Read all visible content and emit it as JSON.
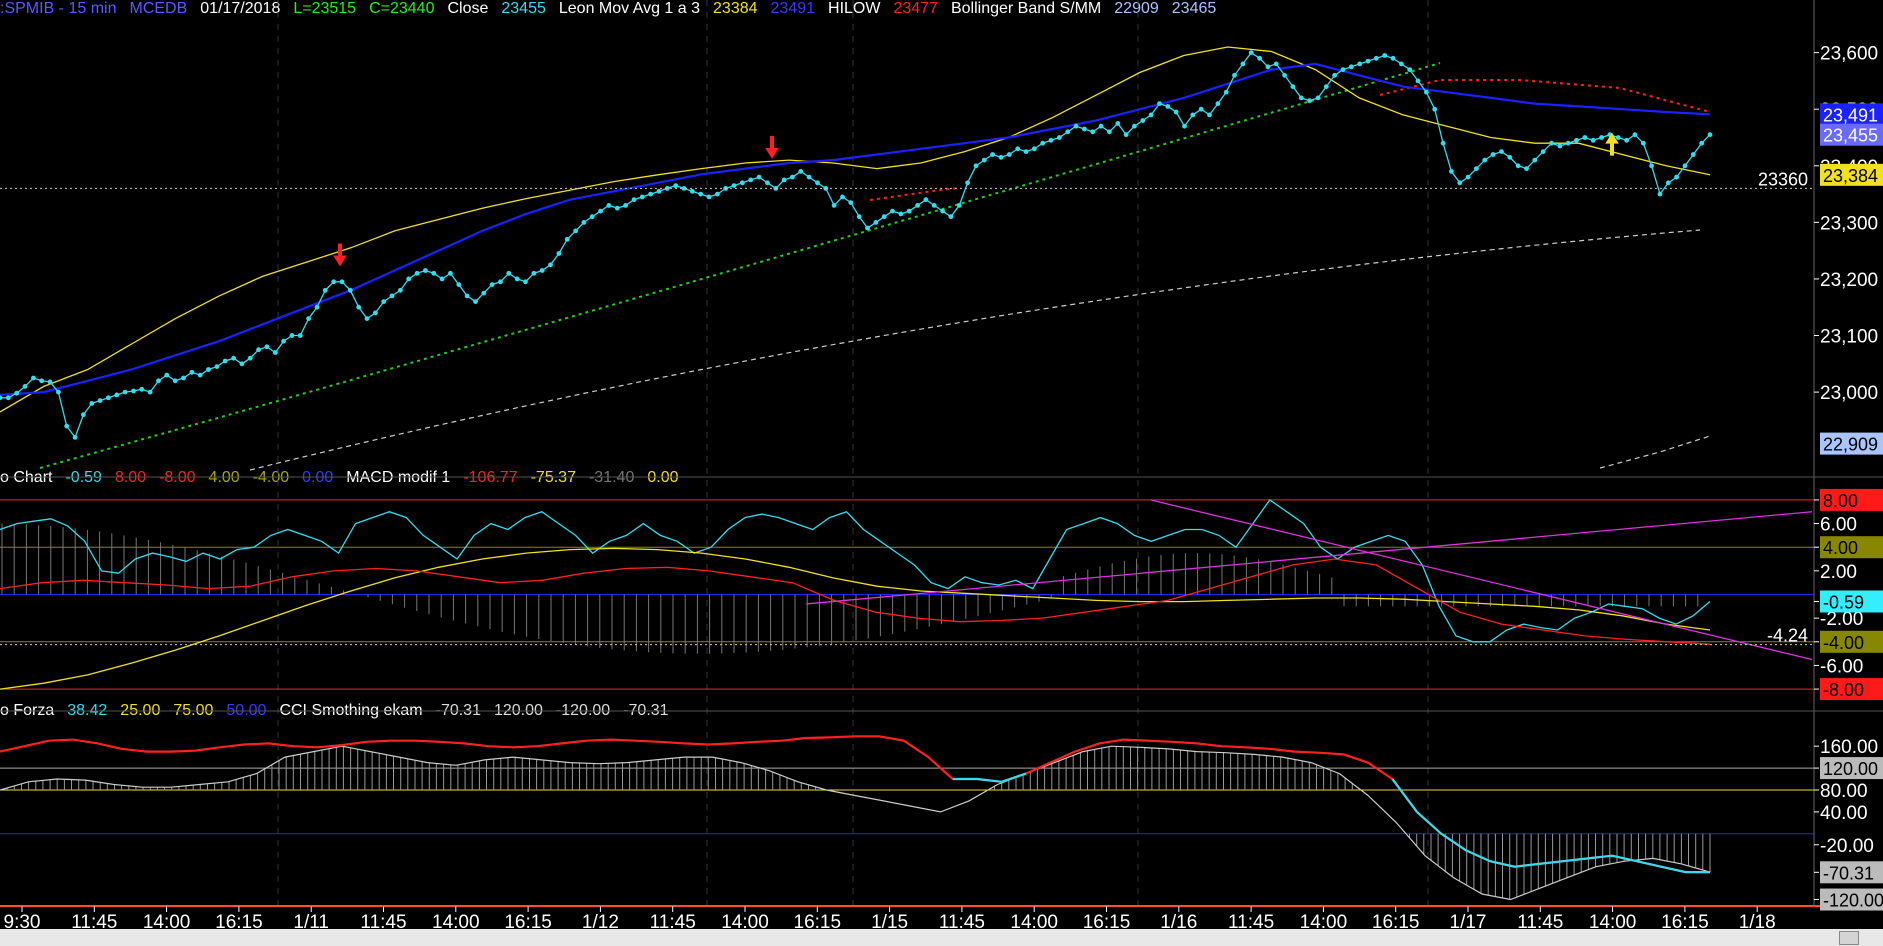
{
  "colors": {
    "cyan": "#33ddee",
    "yellow": "#f0e020",
    "blue": "#1a22ff",
    "red": "#ff2020",
    "green": "#22cc22",
    "grey": "#cccccc",
    "magenta": "#dd33dd",
    "olive": "#888800"
  },
  "header_main": [
    {
      "text": ":SPMIB - 15 min",
      "color": "#5a5aff"
    },
    {
      "text": "MCEDB",
      "color": "#5a5aff"
    },
    {
      "text": "01/17/2018",
      "color": "#ffffff"
    },
    {
      "text": "L=23515",
      "color": "#22ee22"
    },
    {
      "text": "C=23440",
      "color": "#22ee22"
    },
    {
      "text": "Close",
      "color": "#ffffff"
    },
    {
      "text": "23455",
      "color": "#33ddee"
    },
    {
      "text": "Leon Mov Avg 1 a 3",
      "color": "#ffffff"
    },
    {
      "text": "23384",
      "color": "#f0e020"
    },
    {
      "text": "23491",
      "color": "#3a3aff"
    },
    {
      "text": "HILOW",
      "color": "#ffffff"
    },
    {
      "text": "23477",
      "color": "#ff2020"
    },
    {
      "text": "Bollinger Band S/MM",
      "color": "#ffffff"
    },
    {
      "text": "22909",
      "color": "#aac4ff"
    },
    {
      "text": "23465",
      "color": "#aac4ff"
    }
  ],
  "header_panel2": [
    {
      "text": "o Chart",
      "color": "#ffffff"
    },
    {
      "text": "-0.59",
      "color": "#33ddee"
    },
    {
      "text": "8.00",
      "color": "#ff2020"
    },
    {
      "text": "-8.00",
      "color": "#ff2020"
    },
    {
      "text": "4.00",
      "color": "#aaaa00"
    },
    {
      "text": "-4.00",
      "color": "#aaaa00"
    },
    {
      "text": "0.00",
      "color": "#3a3aff"
    },
    {
      "text": "MACD modif 1",
      "color": "#ffffff"
    },
    {
      "text": "-106.77",
      "color": "#ff2020"
    },
    {
      "text": "-75.37",
      "color": "#f0e020"
    },
    {
      "text": "-31.40",
      "color": "#777777"
    },
    {
      "text": "0.00",
      "color": "#f0e020"
    }
  ],
  "header_panel3": [
    {
      "text": "o Forza",
      "color": "#ffffff"
    },
    {
      "text": "38.42",
      "color": "#33ddee"
    },
    {
      "text": "25.00",
      "color": "#f0e020"
    },
    {
      "text": "75.00",
      "color": "#f0e020"
    },
    {
      "text": "50.00",
      "color": "#3a3aff"
    },
    {
      "text": "CCI Smothing ekam",
      "color": "#ffffff"
    },
    {
      "text": "-70.31",
      "color": "#dddddd"
    },
    {
      "text": "120.00",
      "color": "#dddddd"
    },
    {
      "text": "-120.00",
      "color": "#dddddd"
    },
    {
      "text": "-70.31",
      "color": "#dddddd"
    }
  ],
  "chart_data": [
    {
      "type": "line",
      "panel": "price",
      "y_ticks": [
        "23,600",
        "23,500",
        "23,400",
        "23,300",
        "23,200",
        "23,100",
        "23,000"
      ],
      "ylim": [
        22880,
        23640
      ],
      "reference_line": {
        "value": 23360,
        "label": "23360"
      },
      "value_tags": [
        {
          "label": "23,491",
          "value": 23491,
          "bg": "#1a22ff",
          "fg": "#ffffff"
        },
        {
          "label": "23,455",
          "value": 23455,
          "bg": "#6a6aff",
          "fg": "#ffffff"
        },
        {
          "label": "23,384",
          "value": 23384,
          "bg": "#f0e020",
          "fg": "#000000"
        },
        {
          "label": "22,909",
          "value": 22909,
          "bg": "#aac4ff",
          "fg": "#000000"
        }
      ],
      "series": [
        {
          "name": "Close",
          "color": "#33ddee",
          "markers": true,
          "values": [
            22990,
            22990,
            22998,
            23010,
            23025,
            23020,
            23018,
            23000,
            22940,
            22920,
            22960,
            22980,
            22985,
            22990,
            22995,
            23000,
            23002,
            23005,
            23000,
            23020,
            23030,
            23020,
            23025,
            23035,
            23030,
            23040,
            23045,
            23055,
            23060,
            23050,
            23060,
            23075,
            23080,
            23070,
            23090,
            23100,
            23100,
            23130,
            23150,
            23180,
            23195,
            23195,
            23180,
            23150,
            23130,
            23140,
            23160,
            23170,
            23180,
            23200,
            23210,
            23215,
            23210,
            23200,
            23210,
            23190,
            23170,
            23160,
            23175,
            23190,
            23195,
            23210,
            23200,
            23195,
            23210,
            23215,
            23225,
            23245,
            23270,
            23285,
            23300,
            23310,
            23320,
            23330,
            23325,
            23330,
            23340,
            23345,
            23350,
            23355,
            23360,
            23365,
            23360,
            23355,
            23350,
            23345,
            23350,
            23360,
            23365,
            23370,
            23375,
            23380,
            23370,
            23360,
            23375,
            23380,
            23390,
            23380,
            23370,
            23360,
            23330,
            23345,
            23335,
            23310,
            23290,
            23300,
            23310,
            23320,
            23315,
            23320,
            23330,
            23340,
            23330,
            23320,
            23310,
            23330,
            23370,
            23400,
            23410,
            23420,
            23415,
            23420,
            23430,
            23425,
            23430,
            23440,
            23445,
            23450,
            23460,
            23470,
            23465,
            23460,
            23470,
            23460,
            23475,
            23455,
            23470,
            23480,
            23490,
            23510,
            23505,
            23495,
            23470,
            23490,
            23500,
            23490,
            23510,
            23530,
            23560,
            23580,
            23600,
            23590,
            23575,
            23580,
            23560,
            23540,
            23520,
            23515,
            23520,
            23540,
            23560,
            23570,
            23575,
            23580,
            23585,
            23590,
            23595,
            23590,
            23580,
            23570,
            23550,
            23530,
            23500,
            23440,
            23390,
            23370,
            23380,
            23395,
            23410,
            23420,
            23425,
            23415,
            23400,
            23395,
            23410,
            23425,
            23440,
            23435,
            23440,
            23445,
            23450,
            23445,
            23450,
            23455,
            23450,
            23445,
            23455,
            23440,
            23400,
            23350,
            23370,
            23380,
            23400,
            23420,
            23440,
            23455
          ]
        },
        {
          "name": "23384",
          "color": "#f0e020",
          "values": [
            22965,
            23010,
            23040,
            23085,
            23130,
            23170,
            23205,
            23230,
            23255,
            23285,
            23305,
            23325,
            23342,
            23357,
            23372,
            23384,
            23395,
            23405,
            23410,
            23405,
            23395,
            23405,
            23425,
            23450,
            23485,
            23525,
            23565,
            23595,
            23610,
            23602,
            23570,
            23520,
            23490,
            23470,
            23450,
            23440,
            23440,
            23420,
            23400,
            23384
          ]
        },
        {
          "name": "23491",
          "color": "#1a22ff",
          "values": [
            22995,
            23000,
            23020,
            23040,
            23065,
            23090,
            23120,
            23150,
            23180,
            23215,
            23250,
            23285,
            23315,
            23340,
            23355,
            23370,
            23385,
            23395,
            23405,
            23410,
            23420,
            23430,
            23440,
            23450,
            23465,
            23480,
            23500,
            23520,
            23545,
            23570,
            23580,
            23560,
            23540,
            23530,
            23520,
            23510,
            23505,
            23500,
            23495,
            23491
          ]
        }
      ],
      "markers": [
        {
          "type": "arrow-down",
          "color": "#ff2020",
          "value": 23215
        },
        {
          "type": "arrow-down",
          "color": "#ff2020",
          "value": 23405
        },
        {
          "type": "arrow-up",
          "color": "#f0e020",
          "value": 23455
        }
      ]
    },
    {
      "type": "line",
      "panel": "oscillator",
      "y_ticks": [
        "8.00",
        "6.00",
        "4.00",
        "2.00",
        "-0.59",
        "-2.00",
        "-4.00",
        "-6.00",
        "-8.00"
      ],
      "ylim": [
        -8.5,
        8.5
      ],
      "reference_line": {
        "value": -4.24,
        "label": "-4.24"
      },
      "value_tags": [
        {
          "label": "8.00",
          "value": 8.0,
          "bg": "#ff1a1a",
          "fg": "#000000"
        },
        {
          "label": "4.00",
          "value": 4.0,
          "bg": "#888800",
          "fg": "#000000"
        },
        {
          "label": "-0.59",
          "value": -0.59,
          "bg": "#33eeff",
          "fg": "#000000"
        },
        {
          "label": "-4.00",
          "value": -4.0,
          "bg": "#888800",
          "fg": "#000000"
        },
        {
          "label": "-8.00",
          "value": -8.0,
          "bg": "#ff1a1a",
          "fg": "#000000"
        }
      ],
      "series": [
        {
          "name": "-0.59",
          "color": "#33ddee",
          "values": [
            5.5,
            6.0,
            6.2,
            6.4,
            5.8,
            4.5,
            2.0,
            1.8,
            3.0,
            3.5,
            3.2,
            2.8,
            3.5,
            3.0,
            3.8,
            4.0,
            5.0,
            5.5,
            5.0,
            4.5,
            3.5,
            6.0,
            6.5,
            7.0,
            6.5,
            5.0,
            4.0,
            3.0,
            5.0,
            6.0,
            5.5,
            6.5,
            7.0,
            6.0,
            5.0,
            3.5,
            4.5,
            5.0,
            6.0,
            5.0,
            4.5,
            3.5,
            4.0,
            5.5,
            6.5,
            6.8,
            6.5,
            6.0,
            5.5,
            6.5,
            7.0,
            5.5,
            4.5,
            3.5,
            2.5,
            1.0,
            0.5,
            1.5,
            1.0,
            0.8,
            1.2,
            0.5,
            3.0,
            5.5,
            6.0,
            6.5,
            6.0,
            5.0,
            4.5,
            5.0,
            5.5,
            5.5,
            5.0,
            4.0,
            6.0,
            8.0,
            7.0,
            6.0,
            4.0,
            3.0,
            4.0,
            4.5,
            5.0,
            4.5,
            2.5,
            -1.0,
            -3.5,
            -4.0,
            -4.0,
            -3.0,
            -2.5,
            -2.8,
            -3.0,
            -2.0,
            -1.5,
            -0.8,
            -1.0,
            -1.2,
            -2.0,
            -2.5,
            -1.8,
            -0.59
          ]
        },
        {
          "name": "-75.37",
          "color": "#f0e020",
          "values": [
            -8.0,
            -7.5,
            -6.8,
            -5.8,
            -4.7,
            -3.5,
            -2.2,
            -0.9,
            0.3,
            1.4,
            2.3,
            3.0,
            3.5,
            3.8,
            3.9,
            3.8,
            3.5,
            3.0,
            2.3,
            1.4,
            0.7,
            0.3,
            0.1,
            -0.1,
            -0.3,
            -0.5,
            -0.6,
            -0.6,
            -0.5,
            -0.4,
            -0.3,
            -0.3,
            -0.4,
            -0.6,
            -0.8,
            -1.0,
            -1.3,
            -1.8,
            -2.5,
            -3.0
          ]
        },
        {
          "name": "-106.77",
          "color": "#ff2020",
          "values": [
            0.5,
            1.0,
            1.2,
            1.0,
            0.8,
            0.5,
            0.7,
            1.5,
            2.0,
            2.2,
            2.0,
            1.5,
            1.0,
            1.2,
            1.8,
            2.2,
            2.3,
            2.0,
            1.5,
            1.0,
            -0.5,
            -1.5,
            -2.0,
            -2.3,
            -2.2,
            -2.0,
            -1.5,
            -1.0,
            -0.5,
            0.5,
            1.5,
            2.5,
            3.0,
            2.5,
            0.5,
            -1.5,
            -2.5,
            -3.0,
            -3.5,
            -3.8,
            -4.0,
            -4.2
          ]
        }
      ],
      "trend_lines": [
        {
          "color": "#dd33dd",
          "from": [
            0.445,
            -0.8
          ],
          "to": [
            1.0,
            7.0
          ]
        },
        {
          "color": "#dd33dd",
          "from": [
            0.635,
            8.0
          ],
          "to": [
            1.0,
            -5.5
          ]
        }
      ]
    },
    {
      "type": "line",
      "panel": "cci",
      "y_ticks": [
        "160.00",
        "120.00",
        "80.00",
        "40.00",
        "-20.00",
        "-70.31",
        "-120.00"
      ],
      "ylim": [
        -130,
        195
      ],
      "value_tags": [
        {
          "label": "120.00",
          "value": 120,
          "bg": "#bbbbbb",
          "fg": "#000000"
        },
        {
          "label": "-70.31",
          "value": -70.31,
          "bg": "#bbbbbb",
          "fg": "#000000"
        },
        {
          "label": "-120.00",
          "value": -120,
          "bg": "#bbbbbb",
          "fg": "#000000"
        }
      ],
      "series": [
        {
          "name": "38.42",
          "color": "#ff2020",
          "values": [
            150,
            160,
            170,
            172,
            165,
            155,
            150,
            150,
            152,
            158,
            163,
            165,
            160,
            158,
            162,
            168,
            170,
            170,
            168,
            165,
            160,
            158,
            160,
            165,
            170,
            172,
            170,
            168,
            165,
            163,
            165,
            168,
            170,
            175,
            176,
            178,
            178,
            170,
            140,
            100,
            100,
            95,
            110,
            130,
            150,
            165,
            172,
            170,
            168,
            165,
            160,
            158,
            155,
            150,
            148,
            145,
            130,
            100,
            40,
            0,
            -30,
            -50,
            -60,
            -55,
            -50,
            -45,
            -40,
            -50,
            -60,
            -70,
            -70
          ]
        },
        {
          "name": "-70.31",
          "color": "#cccccc",
          "values": [
            80,
            95,
            100,
            98,
            90,
            85,
            85,
            90,
            95,
            110,
            140,
            150,
            160,
            150,
            140,
            130,
            125,
            135,
            140,
            135,
            130,
            128,
            130,
            135,
            140,
            140,
            130,
            115,
            95,
            80,
            70,
            60,
            50,
            40,
            60,
            90,
            110,
            130,
            150,
            160,
            158,
            155,
            150,
            148,
            145,
            140,
            130,
            110,
            70,
            20,
            -40,
            -80,
            -110,
            -120,
            -100,
            -80,
            -60,
            -50,
            -45,
            -55,
            -70
          ]
        }
      ],
      "levels": [
        {
          "value": 120,
          "color": "#aaaaaa"
        },
        {
          "value": 80,
          "color": "#f0e020"
        },
        {
          "value": 0,
          "color": "#2222ff"
        }
      ]
    }
  ],
  "time_axis": [
    "9:30",
    "11:45",
    "14:00",
    "16:15",
    "1/11",
    "11:45",
    "14:00",
    "16:15",
    "1/12",
    "11:45",
    "14:00",
    "16:15",
    "1/15",
    "11:45",
    "14:00",
    "16:15",
    "1/16",
    "11:45",
    "14:00",
    "16:15",
    "1/17",
    "11:45",
    "14:00",
    "16:15",
    "1/18"
  ]
}
